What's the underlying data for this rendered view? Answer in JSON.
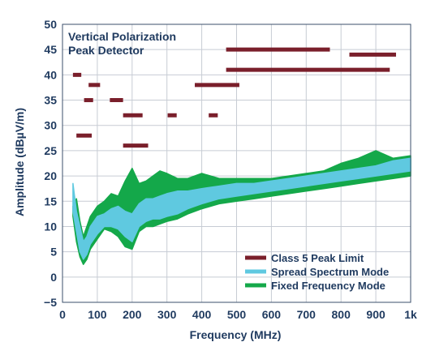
{
  "chart_data": {
    "type": "line",
    "title": "",
    "annotation": [
      "Vertical Polarization",
      "Peak Detector"
    ],
    "xlabel": "Frequency (MHz)",
    "ylabel": "Amplitude (dBµV/m)",
    "xlim": [
      0,
      1000
    ],
    "ylim": [
      -5,
      50
    ],
    "x_ticks": [
      0,
      100,
      200,
      300,
      400,
      500,
      600,
      700,
      800,
      900,
      1000
    ],
    "x_tick_labels": [
      "0",
      "100",
      "200",
      "300",
      "400",
      "500",
      "600",
      "700",
      "800",
      "900",
      "1k"
    ],
    "y_ticks": [
      -5,
      0,
      5,
      10,
      15,
      20,
      25,
      30,
      35,
      40,
      45,
      50
    ],
    "y_tick_labels": [
      "−5",
      "0",
      "5",
      "10",
      "15",
      "20",
      "25",
      "30",
      "35",
      "40",
      "45",
      "50"
    ],
    "grid": true,
    "legend_position": "bottom-right",
    "series": [
      {
        "name": "Class 5 Peak Limit",
        "color": "#7a1f2b",
        "kind": "segments",
        "segments": [
          {
            "x": [
              30,
              54
            ],
            "y": 40
          },
          {
            "x": [
              75,
              108
            ],
            "y": 38
          },
          {
            "x": [
              62,
              88
            ],
            "y": 35
          },
          {
            "x": [
              136,
              174
            ],
            "y": 35
          },
          {
            "x": [
              174,
              230
            ],
            "y": 32
          },
          {
            "x": [
              302,
              328
            ],
            "y": 32
          },
          {
            "x": [
              420,
              446
            ],
            "y": 32
          },
          {
            "x": [
              40,
              84
            ],
            "y": 28
          },
          {
            "x": [
              174,
              246
            ],
            "y": 26
          },
          {
            "x": [
              380,
              508
            ],
            "y": 38
          },
          {
            "x": [
              470,
              768
            ],
            "y": 45
          },
          {
            "x": [
              470,
              940
            ],
            "y": 41
          },
          {
            "x": [
              824,
              958
            ],
            "y": 44
          }
        ]
      },
      {
        "name": "Spread Spectrum Mode",
        "color": "#5fc9e0",
        "kind": "band",
        "x": [
          30,
          40,
          50,
          60,
          70,
          80,
          100,
          120,
          140,
          160,
          180,
          200,
          220,
          240,
          260,
          280,
          300,
          330,
          360,
          400,
          450,
          500,
          550,
          600,
          650,
          700,
          750,
          800,
          850,
          900,
          950,
          1000
        ],
        "lower": [
          13,
          9,
          5,
          3.5,
          4.5,
          6.5,
          8.5,
          10,
          10,
          9.5,
          8,
          7,
          10,
          11,
          11.5,
          11.5,
          12,
          12.5,
          13.5,
          14.5,
          15.5,
          16,
          16.5,
          17,
          17.5,
          18,
          18.5,
          19,
          19.5,
          20,
          20.5,
          21
        ],
        "upper": [
          18.5,
          13,
          10,
          7,
          8,
          10,
          12,
          12.5,
          13.5,
          14,
          13,
          12.5,
          14.5,
          15.5,
          15.5,
          16,
          16.5,
          17,
          17,
          17.5,
          18,
          18.5,
          18.5,
          19,
          19.5,
          20,
          20.5,
          21,
          21.5,
          22,
          23,
          23.5
        ]
      },
      {
        "name": "Fixed Frequency Mode",
        "color": "#14a84a",
        "kind": "band",
        "x": [
          30,
          40,
          50,
          60,
          70,
          80,
          100,
          120,
          140,
          160,
          180,
          200,
          220,
          240,
          260,
          280,
          300,
          330,
          360,
          400,
          450,
          500,
          550,
          600,
          650,
          700,
          750,
          800,
          850,
          900,
          950,
          1000
        ],
        "lower": [
          12,
          7,
          4,
          2.5,
          3.5,
          5.5,
          7.5,
          9.5,
          9,
          8,
          6,
          5.5,
          9,
          10,
          10,
          10.5,
          11,
          11.5,
          12.5,
          13.5,
          14.5,
          15,
          15.5,
          16,
          16.5,
          17,
          17.5,
          18,
          18.5,
          19,
          19.5,
          20
        ],
        "upper": [
          14,
          15.5,
          11,
          8,
          10,
          12,
          14,
          15,
          16.5,
          16,
          19,
          21.5,
          18.5,
          19,
          20,
          21,
          20.5,
          19.5,
          19.5,
          20.5,
          19.5,
          19.5,
          19.5,
          19.5,
          20,
          20.5,
          21,
          22.5,
          23.5,
          25,
          23.5,
          24
        ]
      }
    ],
    "legend": [
      {
        "label": "Class 5 Peak Limit",
        "color": "#7a1f2b"
      },
      {
        "label": "Spread Spectrum Mode",
        "color": "#5fc9e0"
      },
      {
        "label": "Fixed Frequency Mode",
        "color": "#14a84a"
      }
    ]
  }
}
